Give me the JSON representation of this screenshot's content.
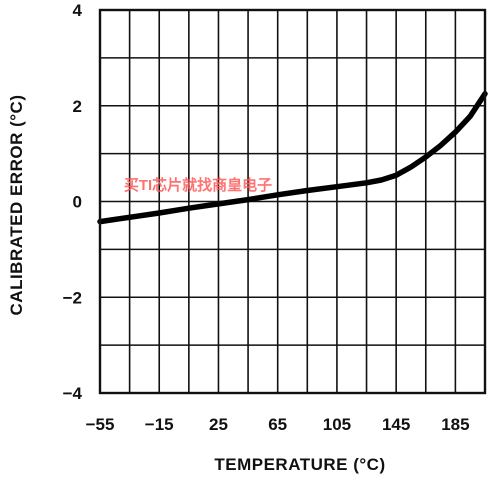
{
  "chart_data": {
    "type": "line",
    "title": "",
    "xlabel": "TEMPERATURE (°C)",
    "ylabel": "CALIBRATED ERROR (°C)",
    "x_ticks": [
      "−55",
      "−15",
      "25",
      "65",
      "105",
      "145",
      "185"
    ],
    "x_tick_values": [
      -55,
      -15,
      25,
      65,
      105,
      145,
      185
    ],
    "y_ticks": [
      "4",
      "2",
      "0",
      "−2",
      "−4"
    ],
    "y_tick_values": [
      4,
      2,
      0,
      -2,
      -4
    ],
    "xlim": [
      -55,
      205
    ],
    "ylim": [
      -4,
      4
    ],
    "grid": true,
    "grid_x_step": 20,
    "grid_y_step": 1,
    "series": [
      {
        "color": "#000000",
        "x": [
          -55,
          -35,
          -15,
          5,
          25,
          45,
          65,
          85,
          105,
          125,
          135,
          145,
          155,
          165,
          175,
          185,
          195,
          205
        ],
        "y": [
          -0.42,
          -0.33,
          -0.24,
          -0.14,
          -0.05,
          0.04,
          0.14,
          0.23,
          0.31,
          0.39,
          0.45,
          0.55,
          0.72,
          0.93,
          1.17,
          1.45,
          1.78,
          2.25
        ]
      }
    ]
  },
  "watermark": "买TI芯片就找商皇电子"
}
